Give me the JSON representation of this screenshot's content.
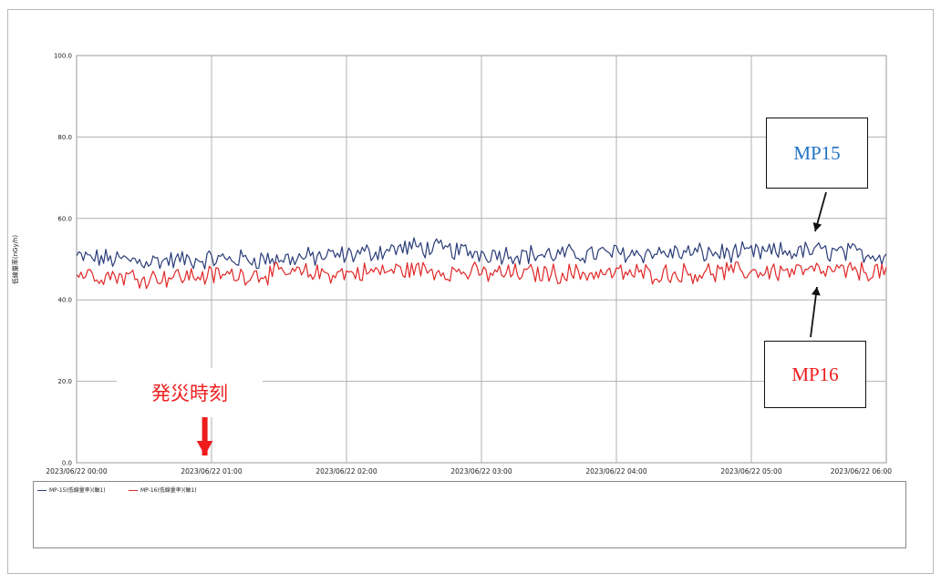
{
  "chart_data": {
    "type": "line",
    "title": "",
    "xlabel": "",
    "ylabel": "低線量率(nGy/h)",
    "ylim": [
      0,
      100
    ],
    "y_ticks": [
      "0.0",
      "20.0",
      "40.0",
      "60.0",
      "80.0",
      "100.0"
    ],
    "x_ticks": [
      "2023/06/22 00:00",
      "2023/06/22 01:00",
      "2023/06/22 02:00",
      "2023/06/22 03:00",
      "2023/06/22 04:00",
      "2023/06/22 05:00",
      "2023/06/22 06:00"
    ],
    "xlim_hours": [
      0,
      6
    ],
    "grid": true,
    "legend_position": "bottom",
    "series": [
      {
        "name": "MP-15(低線量率)(軸1)",
        "color": "#2a3c78",
        "x_hours": [
          0.0,
          0.5,
          1.0,
          1.5,
          2.0,
          2.5,
          3.0,
          3.5,
          4.0,
          4.5,
          5.0,
          5.5,
          6.0
        ],
        "values": [
          50.5,
          49.5,
          50.0,
          50.0,
          51.0,
          53.0,
          51.5,
          51.0,
          51.5,
          51.5,
          51.5,
          52.0,
          51.0
        ]
      },
      {
        "name": "MP-16(低線量率)(軸1)",
        "color": "#e02828",
        "x_hours": [
          0.0,
          0.5,
          1.0,
          1.5,
          2.0,
          2.5,
          3.0,
          3.5,
          4.0,
          4.5,
          5.0,
          5.5,
          6.0
        ],
        "values": [
          46.5,
          45.5,
          46.0,
          46.5,
          46.5,
          47.5,
          46.5,
          46.5,
          46.5,
          46.5,
          47.0,
          47.0,
          47.0
        ]
      }
    ],
    "annotations": [
      {
        "text": "MP15",
        "color": "#1f73c4",
        "points_to_series": 0
      },
      {
        "text": "MP16",
        "color": "#ee1c1c",
        "points_to_series": 1
      },
      {
        "text": "発災時刻",
        "color": "#ee2020",
        "x_hour": 0.95
      }
    ]
  }
}
